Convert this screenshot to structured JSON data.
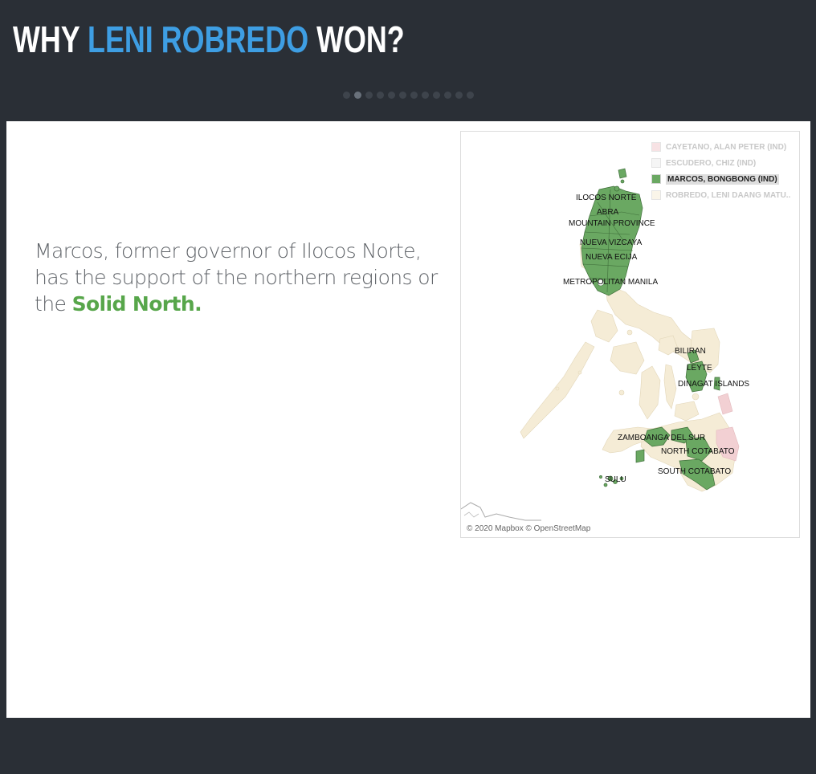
{
  "header": {
    "title_pre": "WHY ",
    "title_highlight": "LENI ROBREDO",
    "title_post": " WON?",
    "dot_count": 12,
    "active_dot": 1
  },
  "story": {
    "text": "Marcos, former governor of Ilocos Norte, has the support of the northern regions or the ",
    "highlight": "Solid North."
  },
  "map": {
    "legend": [
      {
        "label": "CAYETANO, ALAN PETER (IND)",
        "color": "#f2d0d3",
        "selected": false
      },
      {
        "label": "ESCUDERO, CHIZ (IND)",
        "color": "#e6e6e6",
        "selected": false
      },
      {
        "label": "MARCOS, BONGBONG (IND)",
        "color": "#6aa862",
        "selected": true
      },
      {
        "label": "ROBREDO, LENI DAANG MATU..",
        "color": "#f7efdc",
        "selected": false
      }
    ],
    "province_labels": {
      "ilocos_norte": "ILOCOS NORTE",
      "abra": "ABRA",
      "mountain_province": "MOUNTAIN PROVINCE",
      "nueva_vizcaya": "NUEVA VIZCAYA",
      "nueva_ecija": "NUEVA ECIJA",
      "metropolitan_manila": "METROPOLITAN MANILA",
      "biliran": "BILIRAN",
      "leyte": "LEYTE",
      "dinagat_islands": "DINAGAT ISLANDS",
      "zamboanga_del_sur": "ZAMBOANGA DEL SUR",
      "north_cotabato": "NORTH COTABATO",
      "south_cotabato": "SOUTH COTABATO",
      "sulu": "SULU"
    },
    "attribution": "© 2020 Mapbox © OpenStreetMap",
    "colors": {
      "marcos": "#6aa862",
      "robredo": "#f5ecd6",
      "cayetano": "#f2d0d3",
      "border": "#3f6e3a"
    }
  }
}
